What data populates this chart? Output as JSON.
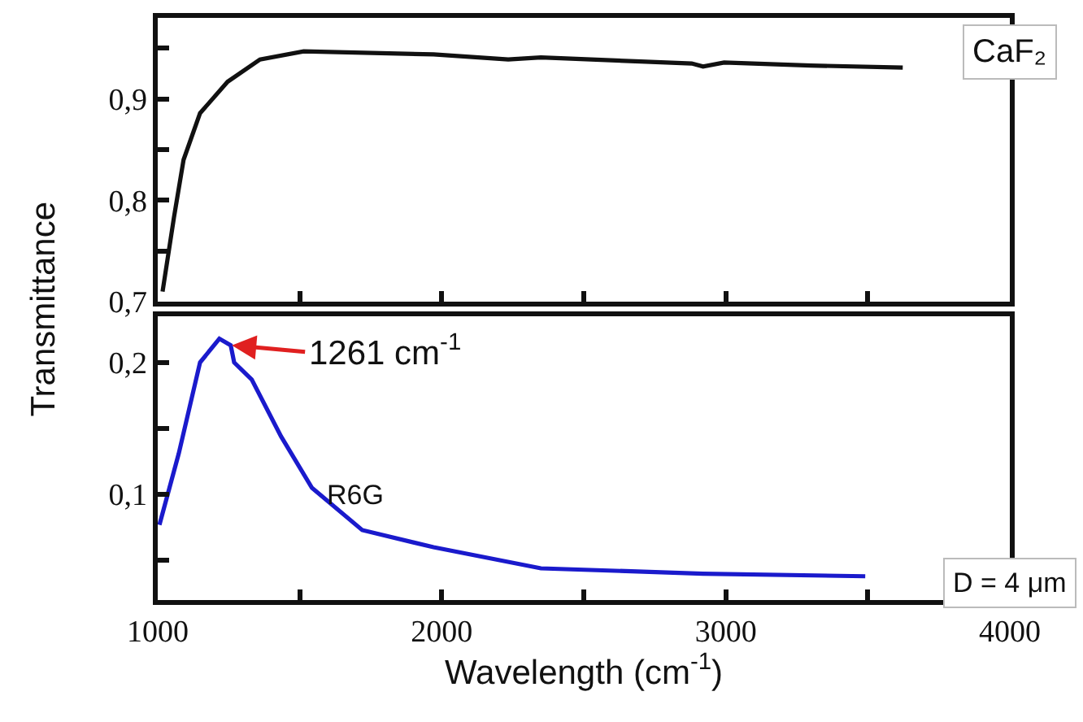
{
  "chart_data": [
    {
      "type": "line",
      "ylabel": "Transmittance",
      "tick_labels": "y",
      "marker": "none",
      "line_style": "solid",
      "xlim": [
        1000,
        4000
      ],
      "xticks": [
        {
          "value": 1000,
          "label": null
        },
        {
          "value": 1500,
          "label": null
        },
        {
          "value": 2000,
          "label": null
        },
        {
          "value": 2500,
          "label": null
        },
        {
          "value": 3000,
          "label": null
        },
        {
          "value": 3500,
          "label": null
        },
        {
          "value": 4000,
          "label": null
        }
      ],
      "ylim": [
        0.7,
        0.98
      ],
      "yticks": [
        {
          "value": 0.7,
          "label": "0,7"
        },
        {
          "value": 0.75,
          "label": null
        },
        {
          "value": 0.8,
          "label": "0,8"
        },
        {
          "value": 0.85,
          "label": null
        },
        {
          "value": 0.9,
          "label": "0,9"
        },
        {
          "value": 0.95,
          "label": null
        }
      ],
      "series": [
        {
          "name": "CaF₂",
          "color": "#111111",
          "x": [
            1017,
            1057,
            1091,
            1149,
            1246,
            1360,
            1514,
            1971,
            2234,
            2349,
            2700,
            2880,
            2920,
            2994,
            3300,
            3623
          ],
          "values": [
            0.71,
            0.783,
            0.84,
            0.886,
            0.917,
            0.939,
            0.947,
            0.944,
            0.939,
            0.941,
            0.937,
            0.935,
            0.932,
            0.936,
            0.933,
            0.931
          ]
        }
      ]
    },
    {
      "type": "line",
      "xlabel": "Wavelength (cm$^{-1}$)",
      "marker": "none",
      "line_style": "solid",
      "xlim": [
        1000,
        4000
      ],
      "xticks": [
        1000,
        {
          "value": 1500,
          "label": null
        },
        2000,
        {
          "value": 2500,
          "label": null
        },
        3000,
        {
          "value": 3500,
          "label": null
        },
        4000
      ],
      "ylim": [
        0.02,
        0.235
      ],
      "yticks": [
        {
          "value": 0.05,
          "label": null
        },
        {
          "value": 0.1,
          "label": "0,1"
        },
        {
          "value": 0.15,
          "label": null
        },
        {
          "value": 0.2,
          "label": "0,2"
        }
      ],
      "series": [
        {
          "name": "R6G",
          "color": "#1a1acc",
          "x": [
            1006,
            1074,
            1149,
            1217,
            1257,
            1269,
            1331,
            1434,
            1543,
            1720,
            1971,
            2349,
            2920,
            3491
          ],
          "values": [
            0.077,
            0.131,
            0.2,
            0.218,
            0.213,
            0.2,
            0.187,
            0.144,
            0.105,
            0.073,
            0.06,
            0.044,
            0.04,
            0.038
          ]
        }
      ],
      "annotations": [
        {
          "text": "1261 cm$^{-1}$",
          "x": 1261,
          "y": 0.213
        },
        "D = 4 μm"
      ]
    }
  ]
}
